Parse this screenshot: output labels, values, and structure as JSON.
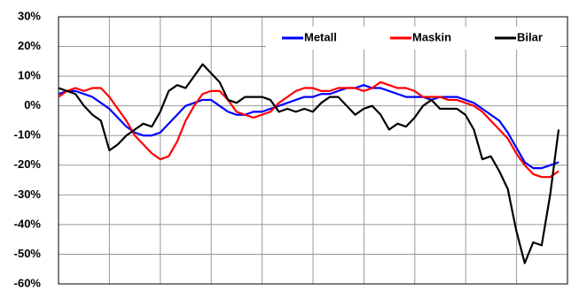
{
  "chart_data": {
    "type": "line",
    "categories": [
      null,
      null,
      null,
      null,
      null,
      null,
      null,
      null,
      null,
      null,
      null,
      null,
      null,
      null,
      null,
      null,
      null,
      null,
      null,
      null,
      null,
      null,
      null,
      null,
      null,
      null,
      null,
      null,
      null,
      null,
      null,
      null,
      null,
      null,
      null,
      null,
      null,
      null,
      null,
      null,
      null,
      null,
      null,
      null,
      null,
      null,
      null,
      null,
      null,
      null,
      null,
      null,
      null,
      null,
      null,
      null,
      null,
      null,
      null,
      null
    ],
    "series": [
      {
        "name": "Metall",
        "color": "#0000ff",
        "values": [
          4,
          5,
          5,
          4,
          3,
          1,
          -1,
          -4,
          -7,
          -9,
          -10,
          -10,
          -9,
          -6,
          -3,
          0,
          1,
          2,
          2,
          0,
          -2,
          -3,
          -3,
          -2,
          -2,
          -1,
          0,
          1,
          2,
          3,
          3,
          4,
          4,
          5,
          6,
          6,
          7,
          6,
          6,
          5,
          4,
          3,
          3,
          3,
          2,
          3,
          3,
          3,
          2,
          1,
          -1,
          -3,
          -5,
          -9,
          -14,
          -19,
          -21,
          -21,
          -20,
          -19
        ]
      },
      {
        "name": "Maskin",
        "color": "#ff0000",
        "values": [
          3,
          5,
          6,
          5,
          6,
          6,
          3,
          -1,
          -5,
          -10,
          -13,
          -16,
          -18,
          -17,
          -12,
          -5,
          0,
          4,
          5,
          5,
          2,
          -2,
          -3,
          -4,
          -3,
          -2,
          1,
          3,
          5,
          6,
          6,
          5,
          5,
          6,
          6,
          6,
          5,
          6,
          8,
          7,
          6,
          6,
          5,
          3,
          3,
          3,
          2,
          2,
          1,
          0,
          -2,
          -5,
          -8,
          -11,
          -16,
          -20,
          -23,
          -24,
          -24,
          -22
        ]
      },
      {
        "name": "Bilar",
        "color": "#000000",
        "values": [
          6,
          5,
          4,
          0,
          -3,
          -5,
          -15,
          -13,
          -10,
          -8,
          -6,
          -7,
          -2,
          5,
          7,
          6,
          10,
          14,
          11,
          8,
          2,
          1,
          3,
          3,
          3,
          2,
          -2,
          -1,
          -2,
          -1,
          -2,
          1,
          3,
          3,
          0,
          -3,
          -1,
          0,
          -3,
          -8,
          -6,
          -7,
          -4,
          0,
          2,
          -1,
          -1,
          -1,
          -3,
          -8,
          -18,
          -17,
          -22,
          -28,
          -42,
          -53,
          -46,
          -47,
          -30,
          -8
        ]
      }
    ],
    "ylim": [
      -60,
      30
    ],
    "yticks": [
      {
        "value": -60,
        "label": "-60%"
      },
      {
        "value": -50,
        "label": "-50%"
      },
      {
        "value": -40,
        "label": "-40%"
      },
      {
        "value": -30,
        "label": "-30%"
      },
      {
        "value": -20,
        "label": "-20%"
      },
      {
        "value": -10,
        "label": "-10%"
      },
      {
        "value": 0,
        "label": "0%"
      },
      {
        "value": 10,
        "label": "10%"
      },
      {
        "value": 20,
        "label": "20%"
      },
      {
        "value": 30,
        "label": "30%"
      }
    ],
    "grid": true,
    "legend": "top-right"
  }
}
